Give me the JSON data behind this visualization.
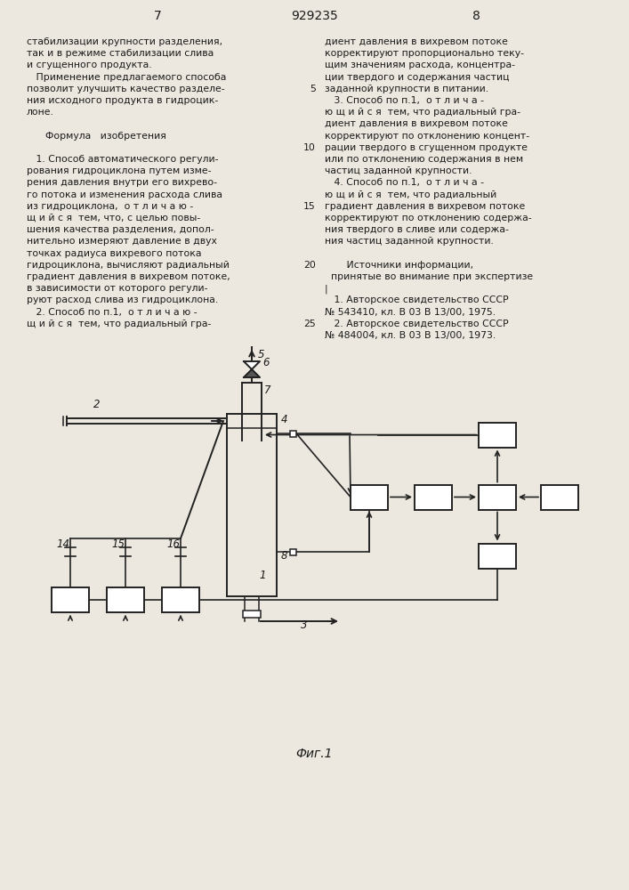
{
  "page_number_left": "7",
  "patent_number": "929235",
  "page_number_right": "8",
  "background_color": "#ece8df",
  "text_color": "#1a1a1a",
  "line_color": "#222222",
  "fig_caption": "Фиг.1",
  "left_col_lines": [
    "стабилизации крупности разделения,",
    "так и в режиме стабилизации слива",
    "и сгущенного продукта.",
    "   Применение предлагаемого способа",
    "позволит улучшить качество разделе-",
    "ния исходного продукта в гидроцик-",
    "лоне.",
    "",
    "      Формула   изобретения",
    "",
    "   1. Способ автоматического регули-",
    "рования гидроциклона путем изме-",
    "рения давления внутри его вихрево-",
    "го потока и изменения расхода слива",
    "из гидроциклона,  о т л и ч а ю -",
    "щ и й с я  тем, что, с целью повы-",
    "шения качества разделения, допол-",
    "нительно измеряют давление в двух",
    "точках радиуса вихревого потока",
    "гидроциклона, вычисляют радиальный",
    "градиент давления в вихревом потоке,",
    "в зависимости от которого регули-",
    "руют расход слива из гидроциклона.",
    "   2. Способ по п.1,  о т л и ч а ю -",
    "щ и й с я  тем, что радиальный гра-"
  ],
  "right_col_lines": [
    "диент давления в вихревом потоке",
    "корректируют пропорционально теку-",
    "щим значениям расхода, концентра-",
    "ции твердого и содержания частиц",
    "заданной крупности в питании.",
    "   3. Способ по п.1,  о т л и ч а -",
    "ю щ и й с я  тем, что радиальный гра-",
    "диент давления в вихревом потоке",
    "корректируют по отклонению концент-",
    "рации твердого в сгущенном продукте",
    "или по отклонению содержания в нем",
    "частиц заданной крупности.",
    "   4. Способ по п.1,  о т л и ч а -",
    "ю щ и й с я  тем, что радиальный",
    "градиент давления в вихревом потоке",
    "корректируют по отклонению содержа-",
    "ния твердого в сливе или содержа-",
    "ния частиц заданной крупности.",
    "",
    "       Источники информации,",
    "  принятые во внимание при экспертизе",
    "|",
    "   1. Авторское свидетельство СССР",
    "№ 543410, кл. В 03 В 13/00, 1975.",
    "   2. Авторское свидетельство СССР",
    "№ 484004, кл. В 03 В 13/00, 1973."
  ],
  "right_line_numbers": [
    null,
    null,
    null,
    null,
    "5",
    null,
    null,
    null,
    null,
    "10",
    null,
    null,
    null,
    null,
    "15",
    null,
    null,
    null,
    null,
    "20",
    null,
    null,
    null,
    null,
    "25",
    null
  ]
}
